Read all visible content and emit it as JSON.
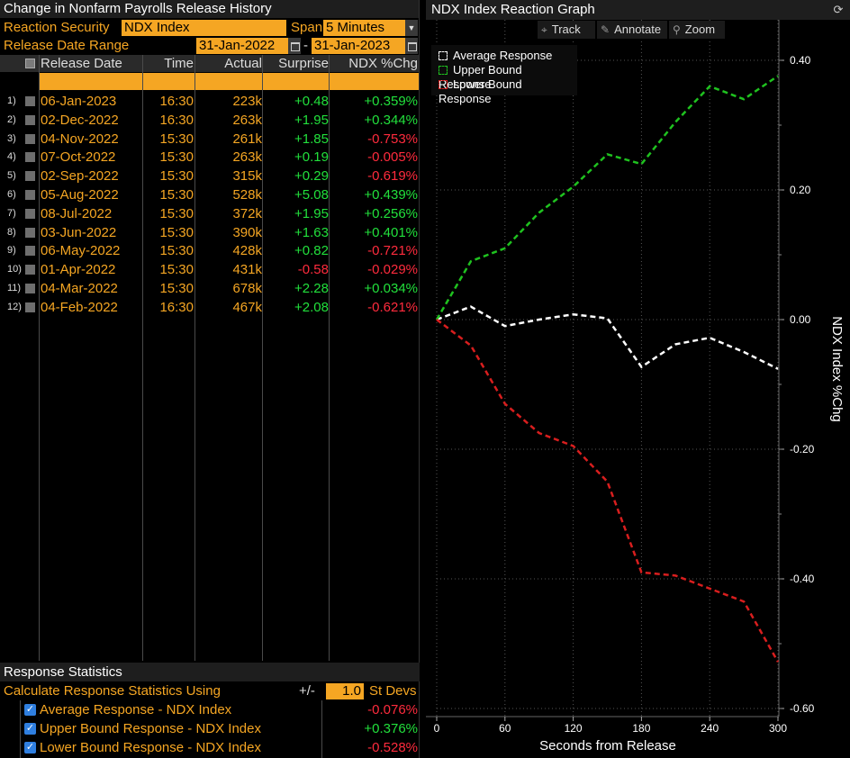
{
  "left_panel": {
    "title": "Change in Nonfarm Payrolls Release History",
    "reaction_security_label": "Reaction Security",
    "reaction_security_value": "NDX Index",
    "span_label": "Span",
    "span_value": "5 Minutes",
    "release_range_label": "Release Date Range",
    "range_start": "31-Jan-2022",
    "range_sep": "-",
    "range_end": "31-Jan-2023",
    "columns": [
      "Release Date",
      "Time",
      "Actual",
      "Surprise",
      "NDX %Chg"
    ],
    "rows": [
      {
        "idx": "1)",
        "date": "06-Jan-2023",
        "time": "16:30",
        "actual": "223k",
        "surprise": "+0.48",
        "pct": "+0.359%"
      },
      {
        "idx": "2)",
        "date": "02-Dec-2022",
        "time": "16:30",
        "actual": "263k",
        "surprise": "+1.95",
        "pct": "+0.344%"
      },
      {
        "idx": "3)",
        "date": "04-Nov-2022",
        "time": "15:30",
        "actual": "261k",
        "surprise": "+1.85",
        "pct": "-0.753%"
      },
      {
        "idx": "4)",
        "date": "07-Oct-2022",
        "time": "15:30",
        "actual": "263k",
        "surprise": "+0.19",
        "pct": "-0.005%"
      },
      {
        "idx": "5)",
        "date": "02-Sep-2022",
        "time": "15:30",
        "actual": "315k",
        "surprise": "+0.29",
        "pct": "-0.619%"
      },
      {
        "idx": "6)",
        "date": "05-Aug-2022",
        "time": "15:30",
        "actual": "528k",
        "surprise": "+5.08",
        "pct": "+0.439%"
      },
      {
        "idx": "7)",
        "date": "08-Jul-2022",
        "time": "15:30",
        "actual": "372k",
        "surprise": "+1.95",
        "pct": "+0.256%"
      },
      {
        "idx": "8)",
        "date": "03-Jun-2022",
        "time": "15:30",
        "actual": "390k",
        "surprise": "+1.63",
        "pct": "+0.401%"
      },
      {
        "idx": "9)",
        "date": "06-May-2022",
        "time": "15:30",
        "actual": "428k",
        "surprise": "+0.82",
        "pct": "-0.721%"
      },
      {
        "idx": "10)",
        "date": "01-Apr-2022",
        "time": "15:30",
        "actual": "431k",
        "surprise": "-0.58",
        "pct": "-0.029%"
      },
      {
        "idx": "11)",
        "date": "04-Mar-2022",
        "time": "15:30",
        "actual": "678k",
        "surprise": "+2.28",
        "pct": "+0.034%"
      },
      {
        "idx": "12)",
        "date": "04-Feb-2022",
        "time": "16:30",
        "actual": "467k",
        "surprise": "+2.08",
        "pct": "-0.621%"
      }
    ],
    "stats": {
      "title": "Response Statistics",
      "calc_label": "Calculate Response Statistics Using",
      "plusminus": "+/-",
      "stdev_value": "1.0",
      "stdev_label": "St Devs",
      "items": [
        {
          "label": "Average Response - NDX Index",
          "value": "-0.076%",
          "checked": true
        },
        {
          "label": "Upper Bound Response - NDX Index",
          "value": "+0.376%",
          "checked": true
        },
        {
          "label": "Lower Bound Response - NDX Index",
          "value": "-0.528%",
          "checked": true
        }
      ]
    }
  },
  "right_panel": {
    "title": "NDX Index Reaction Graph",
    "toolbar": {
      "track": "Track",
      "annotate": "Annotate",
      "zoom": "Zoom"
    },
    "colors": {
      "average": "#ffffff",
      "upper": "#1fc21f",
      "lower": "#d81e1e",
      "accent": "#f5a623"
    }
  },
  "chart_data": {
    "type": "line",
    "xlabel": "Seconds from Release",
    "ylabel": "NDX Index %Chg",
    "xlim": [
      0,
      300
    ],
    "ylim": [
      -0.6,
      0.45
    ],
    "x_ticks": [
      0,
      60,
      120,
      180,
      240,
      300
    ],
    "y_ticks": [
      0.4,
      0.2,
      0.0,
      -0.2,
      -0.4,
      -0.6
    ],
    "y_tick_labels": [
      "0.40",
      "0.20",
      "0.00",
      "-0.20",
      "-0.40",
      "-0.60"
    ],
    "grid": true,
    "legend": "top-left",
    "x": [
      0,
      30,
      60,
      90,
      120,
      150,
      180,
      210,
      240,
      270,
      300
    ],
    "series": [
      {
        "name": "Average Response",
        "values": [
          0.0,
          0.02,
          -0.01,
          0.0,
          0.008,
          0.002,
          -0.073,
          -0.038,
          -0.028,
          -0.05,
          -0.076
        ]
      },
      {
        "name": "Upper Bound Response",
        "values": [
          0.0,
          0.09,
          0.11,
          0.165,
          0.205,
          0.255,
          0.24,
          0.305,
          0.36,
          0.34,
          0.376
        ]
      },
      {
        "name": "Lower Bound Response",
        "values": [
          0.0,
          -0.04,
          -0.13,
          -0.175,
          -0.195,
          -0.25,
          -0.39,
          -0.395,
          -0.415,
          -0.435,
          -0.528
        ]
      }
    ]
  }
}
